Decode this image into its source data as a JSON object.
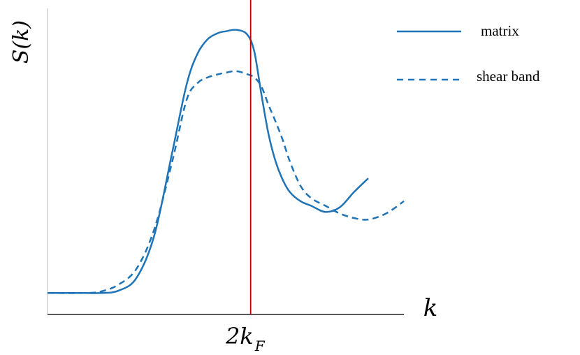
{
  "chart_data": {
    "type": "line",
    "title": "",
    "xlabel": "k",
    "ylabel": "S(k)",
    "xlim": [
      0,
      10
    ],
    "ylim": [
      0,
      10
    ],
    "grid": false,
    "legend_position": "top-right",
    "reference_line": {
      "x": 5.7,
      "label_main": "2k",
      "label_sub": "F",
      "color": "#c00000"
    },
    "series": [
      {
        "name": "matrix",
        "style": "solid",
        "color": "#1f73b7",
        "x": [
          0.0,
          1.0,
          1.5,
          2.0,
          2.5,
          3.0,
          3.5,
          3.9,
          4.2,
          4.5,
          4.8,
          5.0,
          5.3,
          5.6,
          5.8,
          6.0,
          6.2,
          6.4,
          6.6,
          6.8,
          7.1,
          7.4,
          7.8,
          8.2,
          8.6,
          9.0
        ],
        "y": [
          0.7,
          0.7,
          0.7,
          0.78,
          1.2,
          2.6,
          5.3,
          7.5,
          8.5,
          9.0,
          9.2,
          9.25,
          9.3,
          9.15,
          8.6,
          7.2,
          5.9,
          5.0,
          4.4,
          4.0,
          3.7,
          3.55,
          3.35,
          3.5,
          4.0,
          4.45
        ]
      },
      {
        "name": "shear band",
        "style": "dashed",
        "color": "#1f73b7",
        "x": [
          0.0,
          1.0,
          1.5,
          2.0,
          2.5,
          3.0,
          3.5,
          3.9,
          4.2,
          4.5,
          4.8,
          5.0,
          5.3,
          5.6,
          5.8,
          6.0,
          6.2,
          6.4,
          6.6,
          6.8,
          7.1,
          7.4,
          7.8,
          8.2,
          8.6,
          9.0,
          9.5,
          10.0
        ],
        "y": [
          0.7,
          0.7,
          0.75,
          0.98,
          1.5,
          2.8,
          5.0,
          7.0,
          7.55,
          7.75,
          7.85,
          7.9,
          7.95,
          7.85,
          7.75,
          7.45,
          6.85,
          6.3,
          5.7,
          5.0,
          4.2,
          3.8,
          3.55,
          3.3,
          3.15,
          3.1,
          3.3,
          3.7
        ]
      }
    ]
  }
}
